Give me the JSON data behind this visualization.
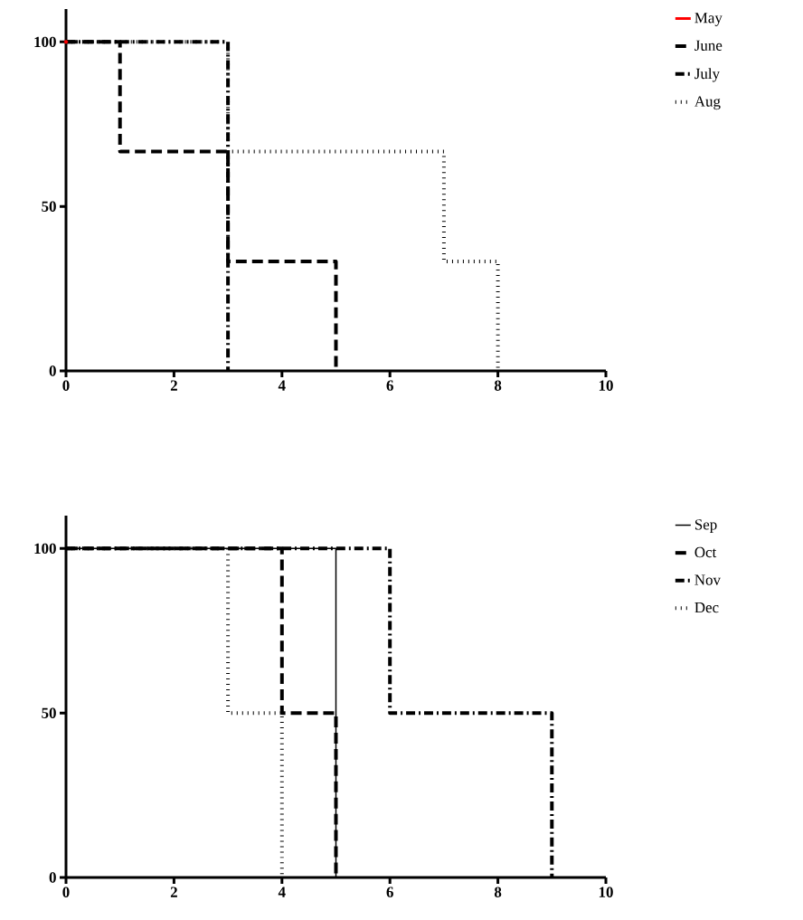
{
  "chart_data": [
    {
      "type": "step",
      "xlim": [
        0,
        10
      ],
      "ylim": [
        0,
        110
      ],
      "xticks": [
        0,
        2,
        4,
        6,
        8,
        10
      ],
      "yticks": [
        0,
        50,
        100
      ],
      "legend": "right",
      "series": [
        {
          "name": "May",
          "type": "scatter",
          "color": "#ff0000",
          "x": [
            0
          ],
          "values": [
            100
          ]
        },
        {
          "name": "June",
          "color": "#000000",
          "line_style": "dashed",
          "x": [
            0,
            1,
            3,
            5
          ],
          "values": [
            100,
            66.7,
            33.3,
            0
          ]
        },
        {
          "name": "July",
          "color": "#000000",
          "line_style": "dashdot",
          "x": [
            0,
            3
          ],
          "values": [
            100,
            0
          ]
        },
        {
          "name": "Aug",
          "color": "#000000",
          "line_style": "dotted",
          "x": [
            0,
            3,
            7,
            8
          ],
          "values": [
            100,
            66.7,
            33.3,
            0
          ]
        }
      ]
    },
    {
      "type": "step",
      "xlim": [
        0,
        10
      ],
      "ylim": [
        0,
        110
      ],
      "xticks": [
        0,
        2,
        4,
        6,
        8,
        10
      ],
      "yticks": [
        0,
        50,
        100
      ],
      "legend": "right",
      "series": [
        {
          "name": "Sep",
          "color": "#000000",
          "line_style": "solid",
          "x": [
            0,
            5
          ],
          "values": [
            100,
            0
          ]
        },
        {
          "name": "Oct",
          "color": "#000000",
          "line_style": "dashed",
          "x": [
            0,
            4,
            5
          ],
          "values": [
            100,
            50,
            0
          ]
        },
        {
          "name": "Nov",
          "color": "#000000",
          "line_style": "dashdot",
          "x": [
            0,
            6,
            9
          ],
          "values": [
            100,
            50,
            0
          ]
        },
        {
          "name": "Dec",
          "color": "#000000",
          "line_style": "dotted",
          "x": [
            0,
            3,
            4
          ],
          "values": [
            100,
            50,
            0
          ]
        }
      ]
    }
  ]
}
